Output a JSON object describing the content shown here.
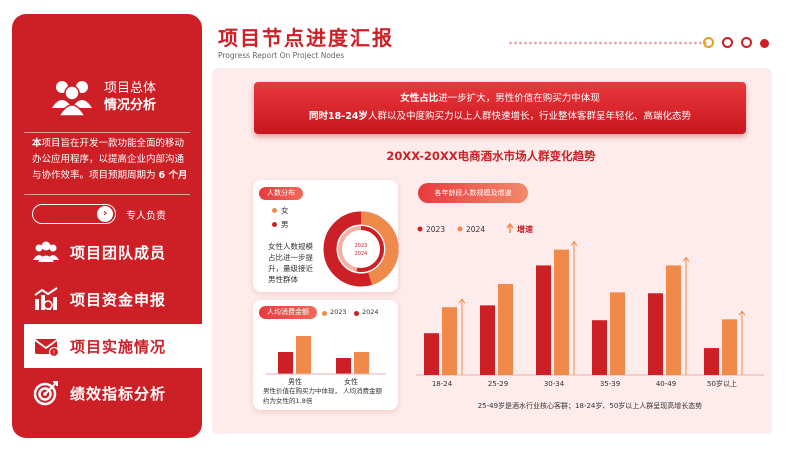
{
  "sidebar": {
    "title_line1": "项目总体",
    "title_line2": "情况分析",
    "desc_bold": "本",
    "desc_rest": "项目旨在开发一款功能全面的移动办公应用程序，以提高企业内部沟通与协作效率。项目预期周期为",
    "desc_period": "6 个月",
    "toggle_label": "专人负责",
    "nav": [
      {
        "label": "项目团队成员",
        "icon": "team-icon"
      },
      {
        "label": "项目资金申报",
        "icon": "funding-icon"
      },
      {
        "label": "项目实施情况",
        "icon": "mail-icon",
        "active": true
      },
      {
        "label": "绩效指标分析",
        "icon": "target-icon"
      }
    ]
  },
  "header": {
    "title": "项目节点进度汇报",
    "subtitle": "Progress Report On Project Nodes"
  },
  "banner": {
    "line1_bold": "女性占比",
    "line1_rest": "进一步扩大，男性价值在购买力中体现",
    "line2_bold": "同时18-24岁",
    "line2_rest": "人群以及中度购买力以上人群快速增长，行业整体客群呈年轻化、高端化态势"
  },
  "market_title": "20XX-20XX电商酒水市场人群变化趋势",
  "gender_card": {
    "pill": "人数分布",
    "female": "女",
    "male": "男",
    "note": "女性人数规模占比进一步提升，量级接近男性群体",
    "donut_year1": "2023",
    "donut_year2": "2024",
    "female_color": "#f08a4b",
    "male_color": "#cc1f26"
  },
  "spend_card": {
    "pill": "人均消费金额",
    "legend": [
      "2023",
      "2024"
    ],
    "male_label": "男性",
    "male_note": "男性价值在购买力中体现，",
    "male_note2": "约为女性的1.8倍",
    "female_label": "女性",
    "female_note": "人均消费金额",
    "values": {
      "male": [
        0.55,
        0.95
      ],
      "female": [
        0.4,
        0.55
      ]
    }
  },
  "chart_data": {
    "type": "bar",
    "title": "各年龄段人数规模及增速",
    "categories": [
      "18-24",
      "25-29",
      "30-34",
      "35-39",
      "40-49",
      "50岁以上"
    ],
    "series": [
      {
        "name": "2023",
        "values": [
          45,
          75,
          118,
          59,
          88,
          29
        ],
        "color": "#cc1f26"
      },
      {
        "name": "2024",
        "values": [
          73,
          98,
          135,
          89,
          118,
          60
        ],
        "color": "#f08a4b"
      }
    ],
    "growth_label": "增速",
    "growth_arrows": [
      true,
      false,
      true,
      false,
      true,
      true
    ],
    "ylim": [
      0,
      140
    ],
    "caption": "25-49岁是酒水行业核心客群；18-24岁、50岁以上人群呈现高增长态势"
  },
  "colors": {
    "accent": "#cc1f26",
    "secondary": "#f08a4b",
    "panel": "#fdeceb"
  }
}
